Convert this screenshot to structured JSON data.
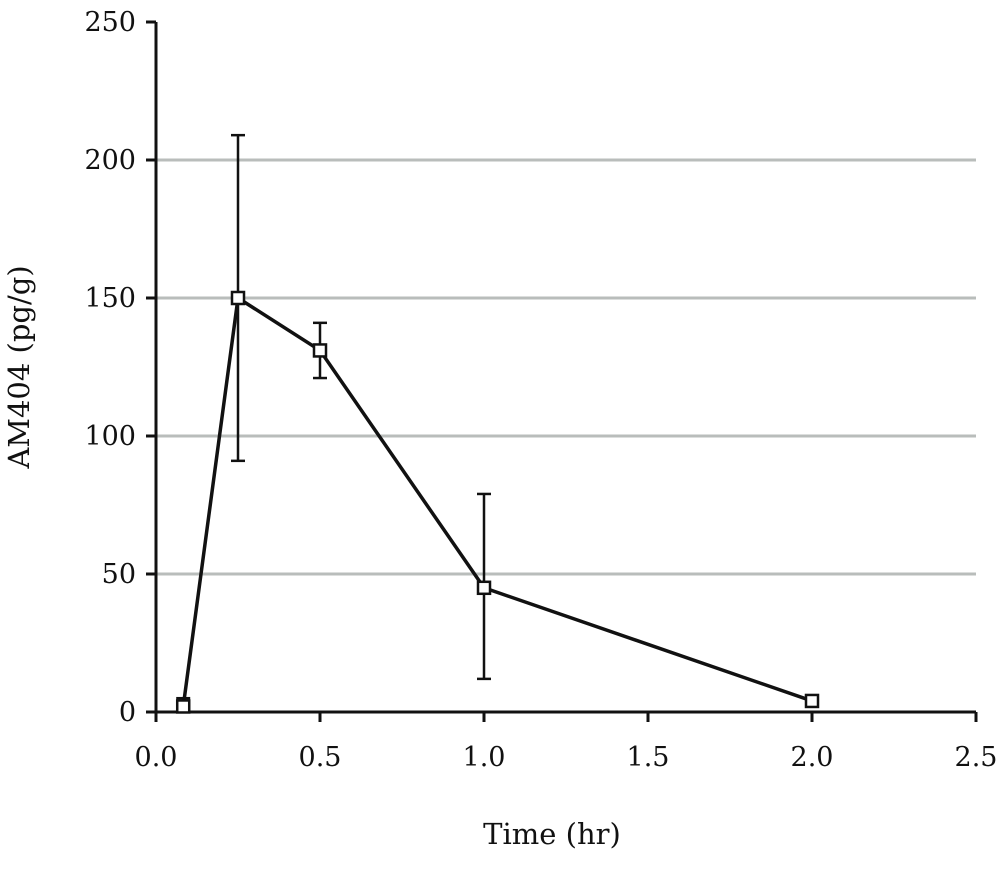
{
  "chart_data": {
    "type": "line",
    "title": "",
    "xlabel": "Time (hr)",
    "ylabel": "AM404 (pg/g)",
    "xlim": [
      0,
      2.5
    ],
    "ylim": [
      0,
      250
    ],
    "x_ticks": [
      "0.0",
      "0.5",
      "1.0",
      "1.5",
      "2.0",
      "2.5"
    ],
    "y_ticks": [
      "0",
      "50",
      "100",
      "150",
      "200",
      "250"
    ],
    "grid": "horizontal",
    "grid_color": "#b9bdbb",
    "line_color": "#111111",
    "marker": "open-square",
    "series": [
      {
        "x": [
          0.083,
          0.25,
          0.5,
          1.0,
          2.0
        ],
        "y": [
          2,
          150,
          131,
          45,
          4
        ],
        "error_upper": [
          5,
          209,
          141,
          79,
          4
        ],
        "error_lower": [
          0,
          91,
          121,
          12,
          4
        ]
      }
    ]
  }
}
